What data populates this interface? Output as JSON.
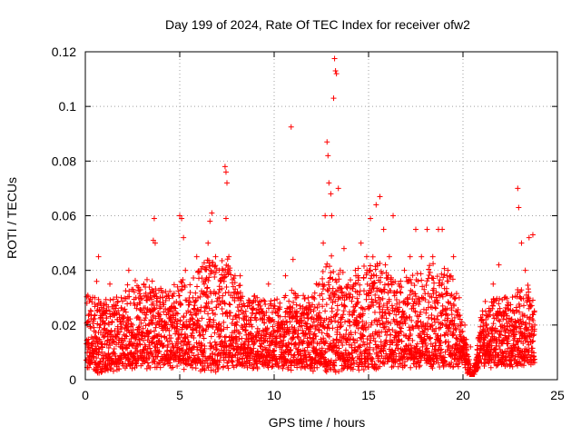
{
  "chart_data": {
    "type": "scatter",
    "title": "Day 199 of 2024, Rate Of TEC Index for receiver ofw2",
    "xlabel": "GPS time / hours",
    "ylabel": "ROTI / TECUs",
    "xlim": [
      0,
      25
    ],
    "ylim": [
      0,
      0.12
    ],
    "xticks": [
      0,
      5,
      10,
      15,
      20,
      25
    ],
    "xtick_labels": [
      "0",
      "5",
      "10",
      "15",
      "20",
      "25"
    ],
    "yticks": [
      0,
      0.02,
      0.04,
      0.06,
      0.08,
      0.1,
      0.12
    ],
    "ytick_labels": [
      "0",
      "0.02",
      "0.04",
      "0.06",
      "0.08",
      "0.1",
      "0.12"
    ],
    "grid": true,
    "marker": "+",
    "color": "#ff0000",
    "series": [
      {
        "name": "ofw2",
        "note": "dense ROTI cloud, values mostly 0.005-0.035 TECU/min",
        "points": [
          [
            0.0,
            0.012
          ],
          [
            0.1,
            0.02
          ],
          [
            0.2,
            0.008
          ],
          [
            0.3,
            0.025
          ],
          [
            0.4,
            0.015
          ],
          [
            0.5,
            0.03
          ],
          [
            0.6,
            0.036
          ],
          [
            0.7,
            0.045
          ],
          [
            0.8,
            0.02
          ],
          [
            0.9,
            0.012
          ],
          [
            1.0,
            0.018
          ],
          [
            1.1,
            0.025
          ],
          [
            1.3,
            0.035
          ],
          [
            1.5,
            0.01
          ],
          [
            1.7,
            0.022
          ],
          [
            1.9,
            0.03
          ],
          [
            2.1,
            0.015
          ],
          [
            2.3,
            0.04
          ],
          [
            2.5,
            0.02
          ],
          [
            2.7,
            0.012
          ],
          [
            2.9,
            0.028
          ],
          [
            3.1,
            0.035
          ],
          [
            3.3,
            0.018
          ],
          [
            3.5,
            0.025
          ],
          [
            3.6,
            0.051
          ],
          [
            3.65,
            0.059
          ],
          [
            3.7,
            0.05
          ],
          [
            3.9,
            0.02
          ],
          [
            4.1,
            0.03
          ],
          [
            4.3,
            0.015
          ],
          [
            4.5,
            0.022
          ],
          [
            4.7,
            0.028
          ],
          [
            4.9,
            0.018
          ],
          [
            5.0,
            0.06
          ],
          [
            5.1,
            0.059
          ],
          [
            5.2,
            0.052
          ],
          [
            5.3,
            0.04
          ],
          [
            5.5,
            0.02
          ],
          [
            5.7,
            0.03
          ],
          [
            5.9,
            0.045
          ],
          [
            6.1,
            0.025
          ],
          [
            6.3,
            0.035
          ],
          [
            6.5,
            0.05
          ],
          [
            6.6,
            0.058
          ],
          [
            6.7,
            0.061
          ],
          [
            6.9,
            0.045
          ],
          [
            7.1,
            0.03
          ],
          [
            7.3,
            0.04
          ],
          [
            7.4,
            0.078
          ],
          [
            7.45,
            0.076
          ],
          [
            7.5,
            0.072
          ],
          [
            7.45,
            0.059
          ],
          [
            7.6,
            0.045
          ],
          [
            7.8,
            0.03
          ],
          [
            8.0,
            0.02
          ],
          [
            8.2,
            0.038
          ],
          [
            8.5,
            0.025
          ],
          [
            8.8,
            0.015
          ],
          [
            9.1,
            0.03
          ],
          [
            9.4,
            0.022
          ],
          [
            9.7,
            0.035
          ],
          [
            10.0,
            0.018
          ],
          [
            10.3,
            0.028
          ],
          [
            10.6,
            0.038
          ],
          [
            10.9,
            0.0925
          ],
          [
            11.0,
            0.044
          ],
          [
            11.2,
            0.025
          ],
          [
            11.5,
            0.018
          ],
          [
            11.8,
            0.03
          ],
          [
            12.1,
            0.022
          ],
          [
            12.4,
            0.035
          ],
          [
            12.6,
            0.05
          ],
          [
            12.7,
            0.06
          ],
          [
            12.8,
            0.087
          ],
          [
            12.85,
            0.082
          ],
          [
            12.9,
            0.072
          ],
          [
            13.0,
            0.068
          ],
          [
            13.05,
            0.06
          ],
          [
            13.15,
            0.103
          ],
          [
            13.2,
            0.1175
          ],
          [
            13.25,
            0.113
          ],
          [
            13.3,
            0.112
          ],
          [
            13.4,
            0.07
          ],
          [
            13.5,
            0.04
          ],
          [
            13.7,
            0.048
          ],
          [
            14.0,
            0.03
          ],
          [
            14.3,
            0.04
          ],
          [
            14.6,
            0.05
          ],
          [
            14.9,
            0.045
          ],
          [
            15.1,
            0.059
          ],
          [
            15.4,
            0.064
          ],
          [
            15.6,
            0.067
          ],
          [
            15.8,
            0.055
          ],
          [
            16.1,
            0.045
          ],
          [
            16.3,
            0.06
          ],
          [
            16.6,
            0.035
          ],
          [
            16.9,
            0.04
          ],
          [
            17.2,
            0.045
          ],
          [
            17.5,
            0.055
          ],
          [
            17.8,
            0.045
          ],
          [
            18.1,
            0.055
          ],
          [
            18.4,
            0.045
          ],
          [
            18.7,
            0.055
          ],
          [
            18.9,
            0.055
          ],
          [
            19.2,
            0.04
          ],
          [
            19.5,
            0.045
          ],
          [
            19.8,
            0.03
          ],
          [
            20.1,
            0.02
          ],
          [
            20.4,
            0.012
          ],
          [
            20.8,
            0.015
          ],
          [
            21.2,
            0.025
          ],
          [
            21.6,
            0.035
          ],
          [
            21.9,
            0.042
          ],
          [
            22.2,
            0.03
          ],
          [
            22.6,
            0.02
          ],
          [
            22.9,
            0.07
          ],
          [
            22.95,
            0.063
          ],
          [
            23.1,
            0.05
          ],
          [
            23.3,
            0.04
          ],
          [
            23.5,
            0.052
          ],
          [
            23.7,
            0.053
          ],
          [
            23.8,
            0.02
          ]
        ],
        "envelope": {
          "hours": [
            0,
            0.5,
            1,
            1.5,
            2,
            2.5,
            3,
            3.5,
            4,
            4.5,
            5,
            5.5,
            6,
            6.5,
            7,
            7.5,
            8,
            8.5,
            9,
            9.5,
            10,
            10.5,
            11,
            11.5,
            12,
            12.5,
            13,
            13.5,
            14,
            14.5,
            15,
            15.5,
            16,
            16.5,
            17,
            17.5,
            18,
            18.5,
            19,
            19.5,
            20,
            20.5,
            21,
            21.5,
            22,
            22.5,
            23,
            23.5,
            23.8
          ],
          "typical_max": [
            0.036,
            0.03,
            0.028,
            0.03,
            0.032,
            0.035,
            0.034,
            0.036,
            0.033,
            0.032,
            0.038,
            0.035,
            0.04,
            0.045,
            0.042,
            0.045,
            0.036,
            0.03,
            0.03,
            0.03,
            0.03,
            0.03,
            0.032,
            0.03,
            0.03,
            0.038,
            0.045,
            0.04,
            0.035,
            0.04,
            0.042,
            0.045,
            0.04,
            0.035,
            0.036,
            0.038,
            0.04,
            0.042,
            0.044,
            0.038,
            0.02,
            0.0,
            0.025,
            0.03,
            0.032,
            0.028,
            0.035,
            0.035,
            0.03
          ],
          "typical_min": [
            0.005,
            0.004,
            0.004,
            0.005,
            0.006,
            0.006,
            0.006,
            0.006,
            0.006,
            0.006,
            0.005,
            0.006,
            0.005,
            0.004,
            0.005,
            0.005,
            0.006,
            0.006,
            0.006,
            0.006,
            0.006,
            0.006,
            0.005,
            0.005,
            0.005,
            0.005,
            0.004,
            0.005,
            0.005,
            0.005,
            0.005,
            0.005,
            0.006,
            0.006,
            0.006,
            0.006,
            0.006,
            0.006,
            0.006,
            0.006,
            0.007,
            0.0,
            0.007,
            0.006,
            0.006,
            0.006,
            0.006,
            0.006,
            0.006
          ]
        }
      }
    ]
  }
}
